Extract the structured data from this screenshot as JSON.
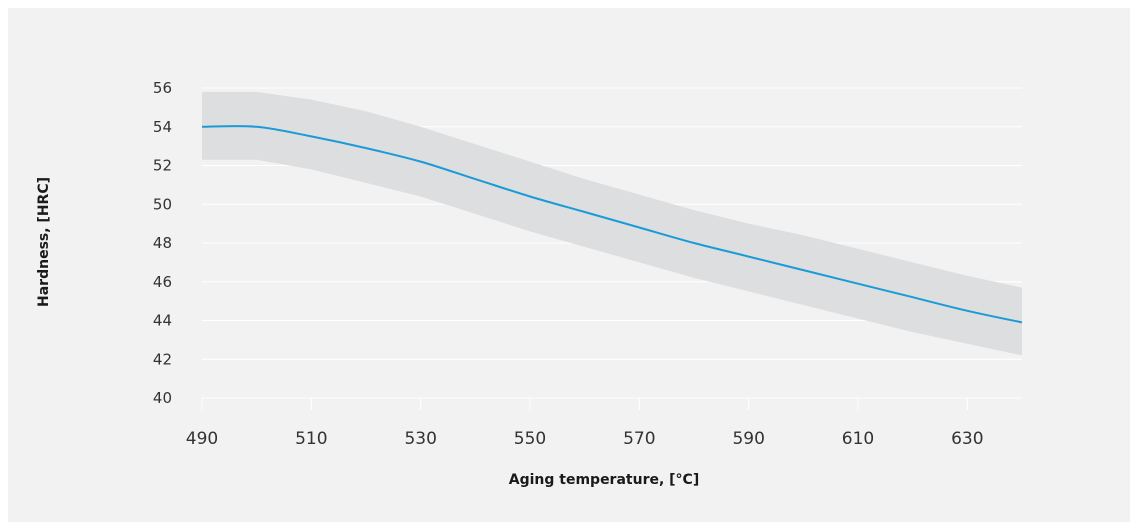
{
  "chart_data": {
    "type": "line",
    "title": "",
    "xlabel": "Aging temperature, [°C]",
    "ylabel": "Hardness, [HRC]",
    "xlim": [
      490,
      640
    ],
    "ylim": [
      40,
      56
    ],
    "x_ticks": [
      "490",
      "510",
      "530",
      "550",
      "570",
      "590",
      "610",
      "630"
    ],
    "y_ticks": [
      "40",
      "42",
      "44",
      "46",
      "48",
      "50",
      "52",
      "54",
      "56"
    ],
    "grid": "horizontal",
    "colors": {
      "line": "#1a9bd7",
      "band": "#dcdedf",
      "grid": "#ffffff",
      "background": "#f2f2f2"
    },
    "series": [
      {
        "x": [
          490,
          500,
          510,
          520,
          530,
          540,
          550,
          560,
          570,
          580,
          590,
          600,
          610,
          620,
          630,
          640
        ],
        "y": [
          54.0,
          54.0,
          53.5,
          52.9,
          52.2,
          51.3,
          50.4,
          49.6,
          48.8,
          48.0,
          47.3,
          46.6,
          45.9,
          45.2,
          44.5,
          43.9
        ]
      }
    ],
    "band": {
      "x": [
        490,
        500,
        510,
        520,
        530,
        540,
        550,
        560,
        570,
        580,
        590,
        600,
        610,
        620,
        630,
        640
      ],
      "upper": [
        55.8,
        55.8,
        55.4,
        54.8,
        54.0,
        53.1,
        52.2,
        51.3,
        50.5,
        49.7,
        49.0,
        48.4,
        47.7,
        47.0,
        46.3,
        45.7
      ],
      "lower": [
        52.3,
        52.3,
        51.8,
        51.1,
        50.4,
        49.5,
        48.6,
        47.8,
        47.0,
        46.2,
        45.5,
        44.8,
        44.1,
        43.4,
        42.8,
        42.2
      ]
    }
  }
}
